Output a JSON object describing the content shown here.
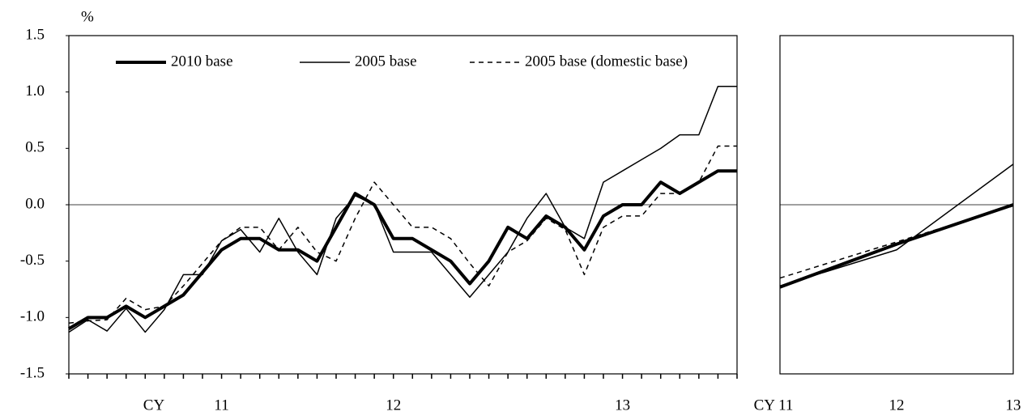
{
  "chart_data": [
    {
      "type": "line",
      "ylabel": "%",
      "xlabel": "CY",
      "categories": [
        null,
        null,
        null,
        null,
        null,
        null,
        null,
        null,
        "11",
        null,
        null,
        null,
        null,
        null,
        null,
        null,
        null,
        "12",
        null,
        null,
        null,
        null,
        null,
        null,
        null,
        null,
        null,
        null,
        null,
        "13",
        null,
        null,
        null,
        null,
        null,
        null
      ],
      "ylim": [
        -1.5,
        1.5
      ],
      "yticks": [
        -1.5,
        {
          "value": -1.0,
          "label": "-1.0"
        },
        -0.5,
        {
          "value": 0.0,
          "label": "0.0"
        },
        0.5,
        {
          "value": 1.0,
          "label": "1.0"
        },
        1.5
      ],
      "series": [
        {
          "name": "2010 base",
          "color": "#000000",
          "width": 4,
          "dash": "none",
          "values": [
            -1.1,
            -1.0,
            -1.0,
            -0.9,
            -1.0,
            -0.9,
            -0.8,
            -0.6,
            -0.4,
            -0.3,
            -0.3,
            -0.4,
            -0.4,
            -0.5,
            -0.2,
            0.1,
            0.0,
            -0.3,
            -0.3,
            -0.4,
            -0.5,
            -0.7,
            -0.5,
            -0.2,
            -0.3,
            -0.1,
            -0.2,
            -0.4,
            -0.1,
            0.0,
            0.0,
            0.2,
            0.1,
            0.2,
            0.3,
            0.3
          ]
        },
        {
          "name": "2005 base",
          "color": "#000000",
          "width": 1.5,
          "dash": "none",
          "values": [
            -1.13,
            -1.02,
            -1.12,
            -0.92,
            -1.13,
            -0.93,
            -0.62,
            -0.62,
            -0.32,
            -0.22,
            -0.42,
            -0.12,
            -0.42,
            -0.62,
            -0.12,
            0.08,
            0.0,
            -0.42,
            -0.42,
            -0.42,
            -0.62,
            -0.82,
            -0.62,
            -0.42,
            -0.12,
            0.1,
            -0.2,
            -0.3,
            0.2,
            0.3,
            0.4,
            0.5,
            0.62,
            0.62,
            1.05,
            1.05
          ]
        },
        {
          "name": "2005 base (domestic base)",
          "color": "#000000",
          "width": 1.5,
          "dash": "6 5",
          "values": [
            -1.05,
            -1.03,
            -1.02,
            -0.83,
            -0.93,
            -0.9,
            -0.72,
            -0.52,
            -0.32,
            -0.2,
            -0.2,
            -0.4,
            -0.2,
            -0.42,
            -0.5,
            -0.12,
            0.2,
            0.0,
            -0.2,
            -0.2,
            -0.3,
            -0.52,
            -0.72,
            -0.42,
            -0.32,
            -0.12,
            -0.22,
            -0.62,
            -0.2,
            -0.1,
            -0.1,
            0.1,
            0.1,
            0.2,
            0.52,
            0.52
          ]
        }
      ]
    },
    {
      "type": "line",
      "categories": [
        "CY 11",
        "12",
        "13"
      ],
      "ylim": [
        -1.5,
        1.5
      ],
      "series": [
        {
          "color": "#000000",
          "width": 4,
          "dash": "none",
          "values": [
            -0.73,
            -0.35,
            0.0
          ]
        },
        {
          "color": "#000000",
          "width": 1.5,
          "dash": "none",
          "values": [
            -0.72,
            -0.4,
            0.36
          ]
        },
        {
          "color": "#000000",
          "width": 1.5,
          "dash": "6 5",
          "values": [
            -0.65,
            -0.33,
            -0.01
          ]
        }
      ]
    }
  ]
}
